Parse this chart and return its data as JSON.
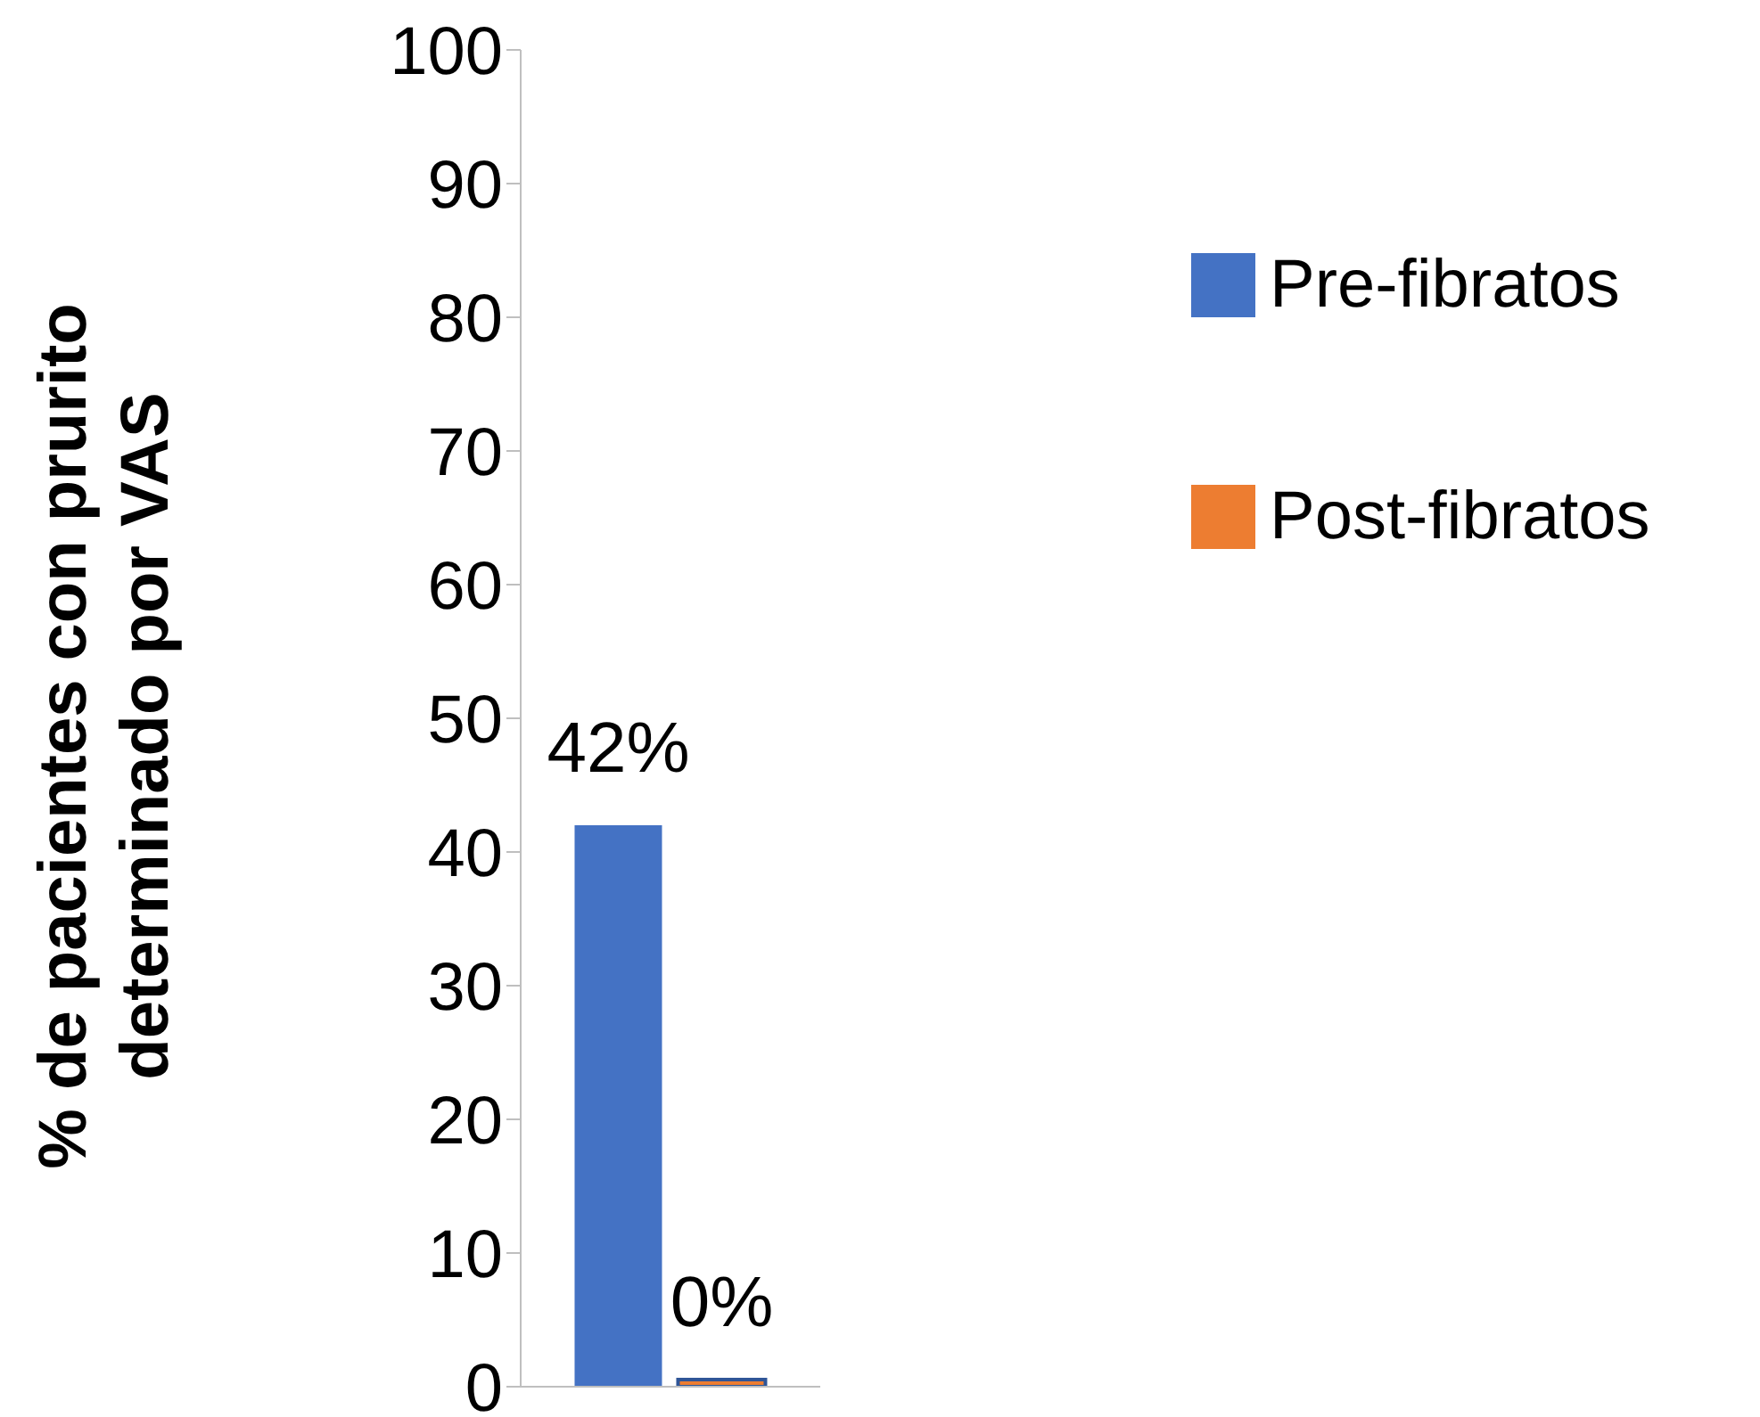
{
  "chart_data": {
    "type": "bar",
    "ylabel": "% de pacientes con prurito\ndeterminado por VAS",
    "categories": [
      null
    ],
    "series": [
      {
        "name": "Pre-fibratos",
        "color": "#4472c4",
        "values": [
          42
        ],
        "value_labels": [
          "42%"
        ]
      },
      {
        "name": "Post-fibratos",
        "color": "#ed7d31",
        "values": [
          0
        ],
        "value_labels": [
          "0%"
        ]
      }
    ],
    "ylim": [
      0,
      100
    ],
    "yticks": [
      0,
      10,
      20,
      30,
      40,
      50,
      60,
      70,
      80,
      90,
      100
    ],
    "grid": false,
    "legend": "top right"
  }
}
